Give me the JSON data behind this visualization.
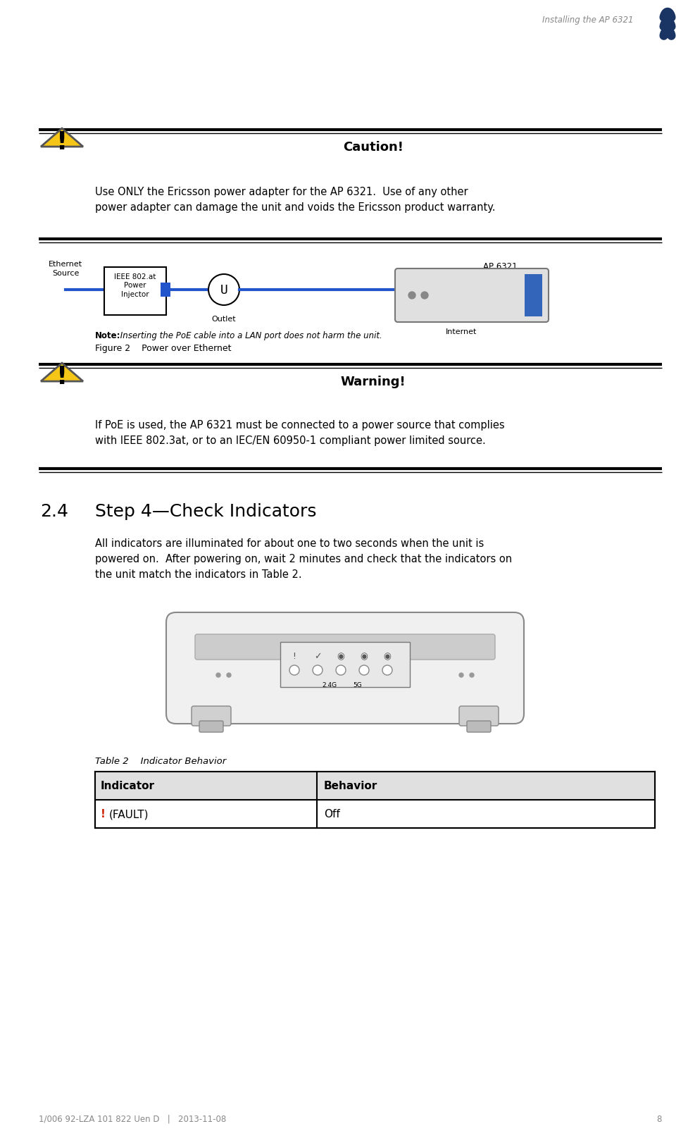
{
  "bg_color": "#ffffff",
  "header_text": "Installing the AP 6321",
  "header_color": "#888888",
  "footer_text": "1/006 92-LZA 101 822 Uen D   |   2013-11-08",
  "footer_page": "8",
  "footer_color": "#888888",
  "caution_title": "Caution!",
  "caution_body": "Use ONLY the Ericsson power adapter for the AP 6321.  Use of any other\npower adapter can damage the unit and voids the Ericsson product warranty.",
  "figure_caption": "Figure 2    Power over Ethernet",
  "warning_title": "Warning!",
  "warning_body": "If PoE is used, the AP 6321 must be connected to a power source that complies\nwith IEEE 802.3at, or to an IEC/EN 60950-1 compliant power limited source.",
  "section_num": "2.4",
  "section_title": "Step 4—Check Indicators",
  "section_body": "All indicators are illuminated for about one to two seconds when the unit is\npowered on.  After powering on, wait 2 minutes and check that the indicators on\nthe unit match the indicators in Table 2.",
  "table_caption": "Table 2    Indicator Behavior",
  "table_col1": "Indicator",
  "table_col2": "Behavior",
  "table_row1_col1_prefix": "!",
  "table_row1_col1_suffix": "(FAULT)",
  "table_row1_col2": "Off",
  "note_text_bold": "Note:",
  "note_text_rest": " Inserting the PoE cable into a LAN port does not harm the unit.",
  "ericsson_logo_color": "#1a3564",
  "triangle_fill": "#f5c518",
  "triangle_stroke": "#555555"
}
